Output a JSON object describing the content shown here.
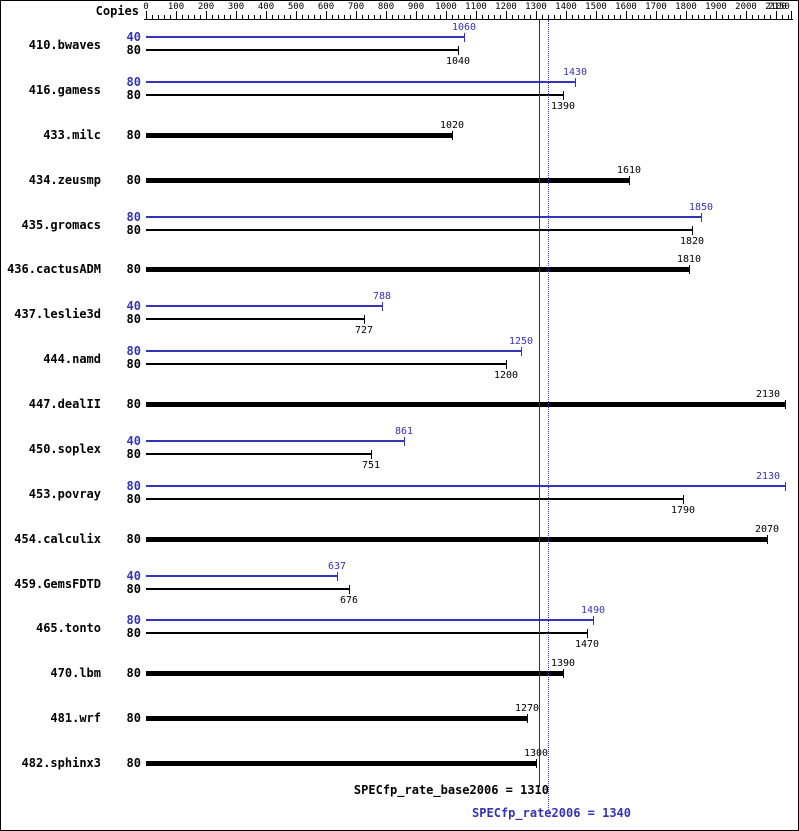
{
  "chart_data": {
    "type": "bar",
    "orientation": "horizontal",
    "title": "",
    "copies_header": "Copies",
    "axis": {
      "min": 0,
      "max": 2150,
      "major_ticks": [
        0,
        100,
        200,
        300,
        400,
        500,
        600,
        700,
        800,
        900,
        1000,
        1100,
        1200,
        1300,
        1400,
        1500,
        1600,
        1700,
        1800,
        1900,
        2000,
        2100,
        2150
      ],
      "minor_step": 20
    },
    "colors": {
      "base": "#000000",
      "peak": "#3333bb",
      "ref_base": "#333333"
    },
    "benchmarks": [
      {
        "name": "410.bwaves",
        "bars": [
          {
            "copies": "40",
            "series": "peak",
            "value": 1060
          },
          {
            "copies": "80",
            "series": "base",
            "value": 1040
          }
        ]
      },
      {
        "name": "416.gamess",
        "bars": [
          {
            "copies": "80",
            "series": "peak",
            "value": 1430
          },
          {
            "copies": "80",
            "series": "base",
            "value": 1390
          }
        ]
      },
      {
        "name": "433.milc",
        "bars": [
          {
            "copies": "80",
            "series": "base",
            "value": 1020
          }
        ]
      },
      {
        "name": "434.zeusmp",
        "bars": [
          {
            "copies": "80",
            "series": "base",
            "value": 1610
          }
        ]
      },
      {
        "name": "435.gromacs",
        "bars": [
          {
            "copies": "80",
            "series": "peak",
            "value": 1850
          },
          {
            "copies": "80",
            "series": "base",
            "value": 1820
          }
        ]
      },
      {
        "name": "436.cactusADM",
        "bars": [
          {
            "copies": "80",
            "series": "base",
            "value": 1810
          }
        ]
      },
      {
        "name": "437.leslie3d",
        "bars": [
          {
            "copies": "40",
            "series": "peak",
            "value": 788
          },
          {
            "copies": "80",
            "series": "base",
            "value": 727
          }
        ]
      },
      {
        "name": "444.namd",
        "bars": [
          {
            "copies": "80",
            "series": "peak",
            "value": 1250
          },
          {
            "copies": "80",
            "series": "base",
            "value": 1200
          }
        ]
      },
      {
        "name": "447.dealII",
        "bars": [
          {
            "copies": "80",
            "series": "base",
            "value": 2130
          }
        ]
      },
      {
        "name": "450.soplex",
        "bars": [
          {
            "copies": "40",
            "series": "peak",
            "value": 861
          },
          {
            "copies": "80",
            "series": "base",
            "value": 751
          }
        ]
      },
      {
        "name": "453.povray",
        "bars": [
          {
            "copies": "80",
            "series": "peak",
            "value": 2130
          },
          {
            "copies": "80",
            "series": "base",
            "value": 1790
          }
        ]
      },
      {
        "name": "454.calculix",
        "bars": [
          {
            "copies": "80",
            "series": "base",
            "value": 2070
          }
        ]
      },
      {
        "name": "459.GemsFDTD",
        "bars": [
          {
            "copies": "40",
            "series": "peak",
            "value": 637
          },
          {
            "copies": "80",
            "series": "base",
            "value": 676
          }
        ]
      },
      {
        "name": "465.tonto",
        "bars": [
          {
            "copies": "80",
            "series": "peak",
            "value": 1490
          },
          {
            "copies": "80",
            "series": "base",
            "value": 1470
          }
        ]
      },
      {
        "name": "470.lbm",
        "bars": [
          {
            "copies": "80",
            "series": "base",
            "value": 1390
          }
        ]
      },
      {
        "name": "481.wrf",
        "bars": [
          {
            "copies": "80",
            "series": "base",
            "value": 1270
          }
        ]
      },
      {
        "name": "482.sphinx3",
        "bars": [
          {
            "copies": "80",
            "series": "base",
            "value": 1300
          }
        ]
      }
    ],
    "reference_lines": [
      {
        "series": "base",
        "value": 1310,
        "style": "solid"
      },
      {
        "series": "peak",
        "value": 1340,
        "style": "dotted"
      }
    ],
    "footer": [
      {
        "label": "SPECfp_rate_base2006 = 1310",
        "series": "base"
      },
      {
        "label": "SPECfp_rate2006 = 1340",
        "series": "peak"
      }
    ]
  }
}
